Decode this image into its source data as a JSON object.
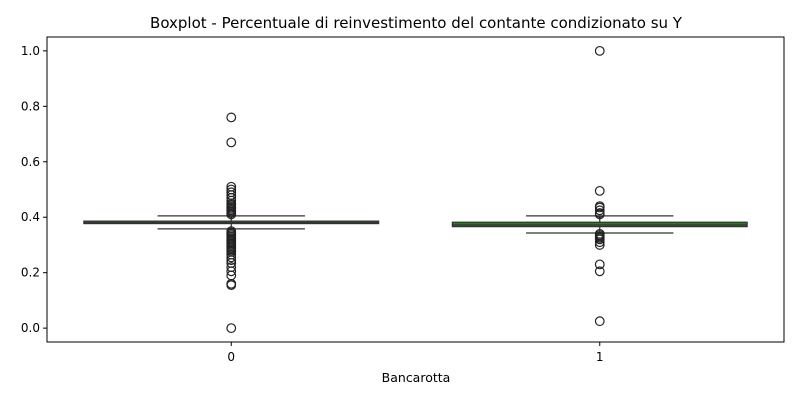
{
  "chart_data": {
    "type": "boxplot",
    "title": "Boxplot - Percentuale di reinvestimento del contante condizionato su Y",
    "xlabel": "Bancarotta",
    "ylabel": "",
    "categories": [
      "0",
      "1"
    ],
    "ylim": [
      -0.05,
      1.05
    ],
    "yticks": [
      0.0,
      0.2,
      0.4,
      0.6,
      0.8,
      1.0
    ],
    "ytick_labels": [
      "0.0",
      "0.2",
      "0.4",
      "0.6",
      "0.8",
      "1.0"
    ],
    "grid": false,
    "box_color": "#2a7a1f",
    "edge_color": "#333333",
    "boxes": [
      {
        "category": "0",
        "q1": 0.377,
        "median": 0.381,
        "q3": 0.386,
        "whisker_low": 0.358,
        "whisker_high": 0.405,
        "outliers": [
          0.0,
          0.155,
          0.16,
          0.19,
          0.205,
          0.22,
          0.235,
          0.245,
          0.255,
          0.265,
          0.275,
          0.28,
          0.285,
          0.29,
          0.295,
          0.3,
          0.305,
          0.31,
          0.315,
          0.32,
          0.325,
          0.33,
          0.335,
          0.34,
          0.345,
          0.35,
          0.41,
          0.415,
          0.42,
          0.425,
          0.43,
          0.435,
          0.44,
          0.445,
          0.45,
          0.46,
          0.47,
          0.48,
          0.49,
          0.5,
          0.51,
          0.67,
          0.76
        ]
      },
      {
        "category": "1",
        "q1": 0.366,
        "median": 0.372,
        "q3": 0.382,
        "whisker_low": 0.343,
        "whisker_high": 0.405,
        "outliers": [
          0.025,
          0.205,
          0.23,
          0.3,
          0.31,
          0.32,
          0.325,
          0.33,
          0.335,
          0.34,
          0.41,
          0.415,
          0.425,
          0.435,
          0.44,
          0.495,
          1.0
        ]
      }
    ]
  }
}
